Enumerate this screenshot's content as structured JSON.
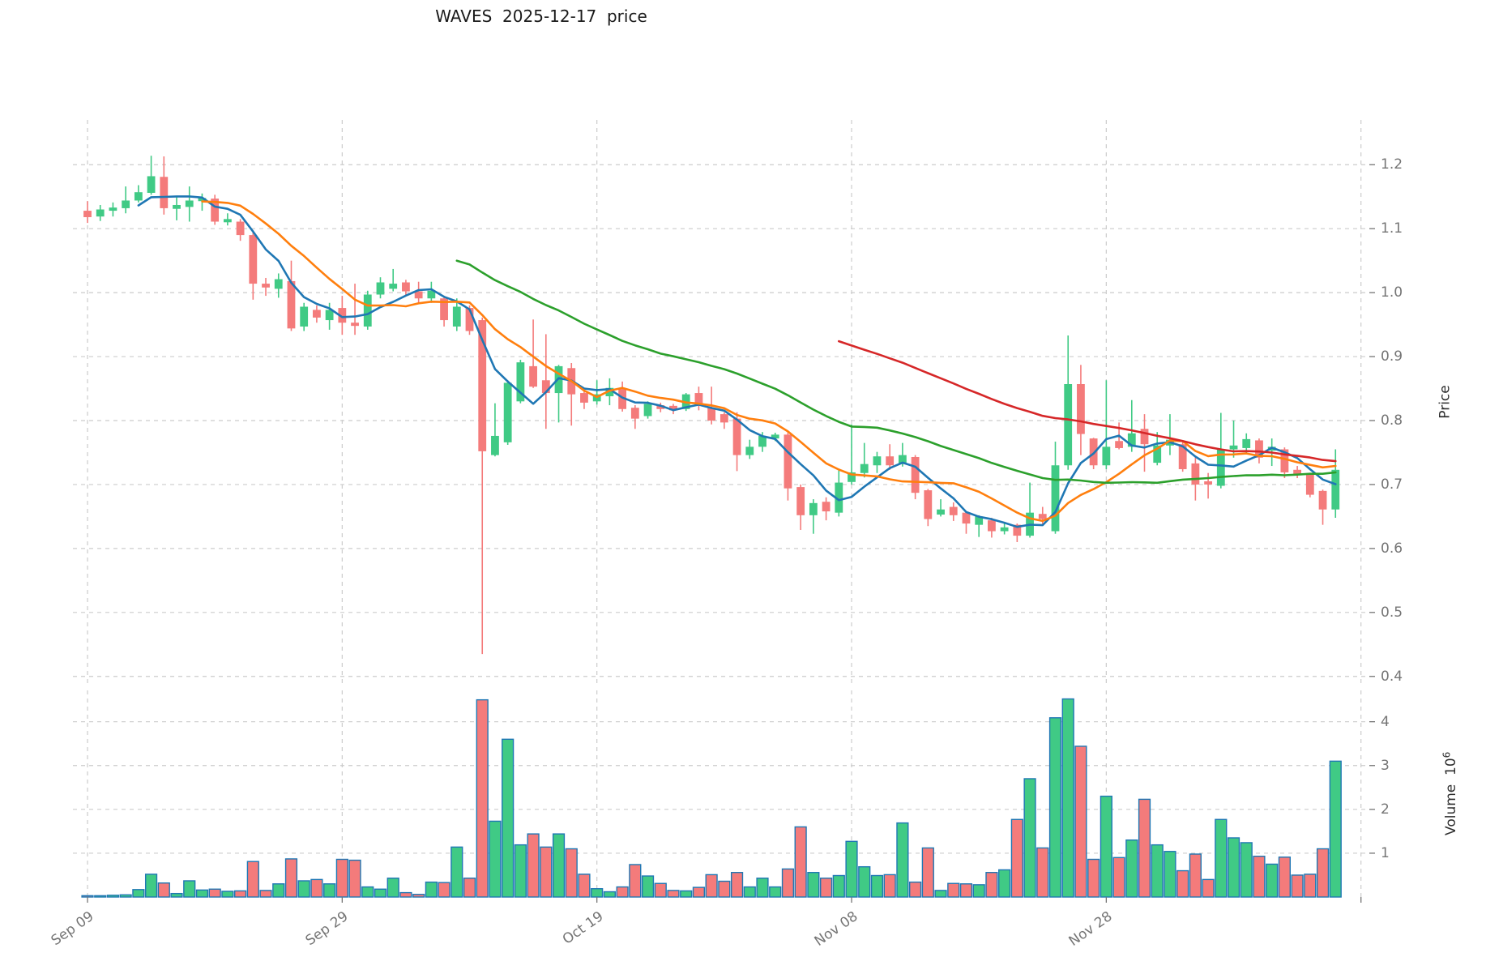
{
  "title": "WAVES  2025-12-17  price",
  "price_axis": {
    "label": "Price",
    "ticks": [
      {
        "v": 1.2,
        "label": "1.2"
      },
      {
        "v": 1.1,
        "label": "1.1"
      },
      {
        "v": 1.0,
        "label": "1.0"
      },
      {
        "v": 0.9,
        "label": "0.9"
      },
      {
        "v": 0.8,
        "label": "0.8"
      },
      {
        "v": 0.7,
        "label": "0.7"
      },
      {
        "v": 0.6,
        "label": "0.6"
      },
      {
        "v": 0.5,
        "label": "0.5"
      },
      {
        "v": 0.4,
        "label": "0.4"
      }
    ]
  },
  "volume_axis": {
    "label_base": "Volume  10",
    "label_exp": "6",
    "ticks": [
      {
        "v": 4,
        "label": "4"
      },
      {
        "v": 3,
        "label": "3"
      },
      {
        "v": 2,
        "label": "2"
      },
      {
        "v": 1,
        "label": "1"
      }
    ]
  },
  "x_axis": {
    "ticks": [
      {
        "day": 0,
        "label": "Sep 09"
      },
      {
        "day": 20,
        "label": "Sep 29"
      },
      {
        "day": 40,
        "label": "Oct 19"
      },
      {
        "day": 60,
        "label": "Nov 08"
      },
      {
        "day": 80,
        "label": "Nov 28"
      },
      {
        "day": 100,
        "label": ""
      }
    ]
  },
  "colors": {
    "up": "#40ca85",
    "down": "#f47b7b",
    "volume_edge": "#1f77b4",
    "grid": "#cccccc",
    "tick_text": "#757575",
    "axis_label_text": "#2e2e2e",
    "title_text": "#1a1a1a"
  },
  "chart_data": {
    "type": "candlestick_volume",
    "title": "WAVES  2025-12-17  price",
    "x_start_label": "Sep 09",
    "x_tick_step_days": 20,
    "price_ylim": [
      0.387,
      1.27
    ],
    "volume_ylim": [
      0,
      4.715
    ],
    "grid": "dashed",
    "ohlcv_format": [
      "open",
      "high",
      "low",
      "close",
      "volume_millions"
    ],
    "candles": [
      [
        1.128,
        1.143,
        1.109,
        1.118,
        0.03
      ],
      [
        1.119,
        1.137,
        1.112,
        1.13,
        0.03
      ],
      [
        1.128,
        1.141,
        1.119,
        1.133,
        0.04
      ],
      [
        1.132,
        1.166,
        1.124,
        1.144,
        0.05
      ],
      [
        1.144,
        1.168,
        1.141,
        1.157,
        0.17
      ],
      [
        1.156,
        1.214,
        1.153,
        1.182,
        0.52
      ],
      [
        1.181,
        1.213,
        1.122,
        1.132,
        0.32
      ],
      [
        1.131,
        1.149,
        1.113,
        1.137,
        0.08
      ],
      [
        1.134,
        1.166,
        1.111,
        1.144,
        0.37
      ],
      [
        1.143,
        1.155,
        1.128,
        1.148,
        0.16
      ],
      [
        1.147,
        1.153,
        1.106,
        1.111,
        0.18
      ],
      [
        1.11,
        1.124,
        1.105,
        1.115,
        0.13
      ],
      [
        1.111,
        1.115,
        1.081,
        1.09,
        0.14
      ],
      [
        1.09,
        1.095,
        0.989,
        1.014,
        0.81
      ],
      [
        1.014,
        1.023,
        0.995,
        1.008,
        0.15
      ],
      [
        1.006,
        1.03,
        0.992,
        1.021,
        0.3
      ],
      [
        1.018,
        1.05,
        0.94,
        0.944,
        0.87
      ],
      [
        0.947,
        0.984,
        0.94,
        0.978,
        0.37
      ],
      [
        0.973,
        0.98,
        0.953,
        0.961,
        0.4
      ],
      [
        0.957,
        0.984,
        0.942,
        0.973,
        0.3
      ],
      [
        0.976,
        0.995,
        0.934,
        0.953,
        0.86
      ],
      [
        0.953,
        1.014,
        0.934,
        0.948,
        0.84
      ],
      [
        0.947,
        1.003,
        0.942,
        0.997,
        0.23
      ],
      [
        0.997,
        1.024,
        0.991,
        1.016,
        0.18
      ],
      [
        1.006,
        1.037,
        1.002,
        1.014,
        0.43
      ],
      [
        1.016,
        1.02,
        0.995,
        1.002,
        0.1
      ],
      [
        1.002,
        1.017,
        0.984,
        0.991,
        0.06
      ],
      [
        0.991,
        1.017,
        0.984,
        1.003,
        0.34
      ],
      [
        0.991,
        0.995,
        0.947,
        0.957,
        0.33
      ],
      [
        0.947,
        0.991,
        0.94,
        0.978,
        1.14
      ],
      [
        0.976,
        0.98,
        0.934,
        0.94,
        0.43
      ],
      [
        0.957,
        0.961,
        0.435,
        0.752,
        4.5
      ],
      [
        0.746,
        0.827,
        0.744,
        0.776,
        1.73
      ],
      [
        0.766,
        0.863,
        0.762,
        0.859,
        3.6
      ],
      [
        0.83,
        0.895,
        0.827,
        0.891,
        1.19
      ],
      [
        0.885,
        0.958,
        0.851,
        0.853,
        1.44
      ],
      [
        0.863,
        0.935,
        0.787,
        0.843,
        1.14
      ],
      [
        0.843,
        0.887,
        0.797,
        0.885,
        1.44
      ],
      [
        0.882,
        0.89,
        0.792,
        0.841,
        1.1
      ],
      [
        0.843,
        0.847,
        0.818,
        0.828,
        0.52
      ],
      [
        0.83,
        0.863,
        0.825,
        0.841,
        0.19
      ],
      [
        0.838,
        0.866,
        0.824,
        0.851,
        0.12
      ],
      [
        0.849,
        0.861,
        0.814,
        0.818,
        0.23
      ],
      [
        0.82,
        0.824,
        0.787,
        0.803,
        0.74
      ],
      [
        0.807,
        0.83,
        0.803,
        0.826,
        0.48
      ],
      [
        0.824,
        0.828,
        0.813,
        0.818,
        0.31
      ],
      [
        0.823,
        0.826,
        0.81,
        0.816,
        0.15
      ],
      [
        0.818,
        0.843,
        0.815,
        0.841,
        0.14
      ],
      [
        0.843,
        0.853,
        0.816,
        0.823,
        0.22
      ],
      [
        0.82,
        0.853,
        0.794,
        0.8,
        0.51
      ],
      [
        0.81,
        0.813,
        0.787,
        0.797,
        0.36
      ],
      [
        0.803,
        0.813,
        0.721,
        0.746,
        0.56
      ],
      [
        0.746,
        0.77,
        0.74,
        0.759,
        0.23
      ],
      [
        0.759,
        0.782,
        0.751,
        0.776,
        0.43
      ],
      [
        0.772,
        0.781,
        0.768,
        0.778,
        0.23
      ],
      [
        0.778,
        0.782,
        0.675,
        0.694,
        0.64
      ],
      [
        0.696,
        0.7,
        0.629,
        0.652,
        1.6
      ],
      [
        0.652,
        0.677,
        0.623,
        0.671,
        0.56
      ],
      [
        0.673,
        0.68,
        0.644,
        0.658,
        0.43
      ],
      [
        0.656,
        0.723,
        0.65,
        0.703,
        0.49
      ],
      [
        0.704,
        0.794,
        0.7,
        0.719,
        1.27
      ],
      [
        0.718,
        0.765,
        0.711,
        0.732,
        0.69
      ],
      [
        0.73,
        0.751,
        0.718,
        0.744,
        0.49
      ],
      [
        0.744,
        0.763,
        0.723,
        0.73,
        0.51
      ],
      [
        0.732,
        0.765,
        0.728,
        0.746,
        1.69
      ],
      [
        0.743,
        0.746,
        0.677,
        0.687,
        0.34
      ],
      [
        0.691,
        0.693,
        0.635,
        0.646,
        1.12
      ],
      [
        0.653,
        0.677,
        0.65,
        0.661,
        0.15
      ],
      [
        0.665,
        0.672,
        0.643,
        0.652,
        0.31
      ],
      [
        0.656,
        0.658,
        0.623,
        0.639,
        0.3
      ],
      [
        0.637,
        0.652,
        0.618,
        0.65,
        0.28
      ],
      [
        0.644,
        0.648,
        0.617,
        0.627,
        0.56
      ],
      [
        0.627,
        0.64,
        0.622,
        0.633,
        0.62
      ],
      [
        0.637,
        0.639,
        0.61,
        0.62,
        1.77
      ],
      [
        0.62,
        0.703,
        0.617,
        0.656,
        2.7
      ],
      [
        0.654,
        0.665,
        0.637,
        0.646,
        1.12
      ],
      [
        0.627,
        0.767,
        0.623,
        0.73,
        4.09
      ],
      [
        0.73,
        0.933,
        0.723,
        0.857,
        4.52
      ],
      [
        0.857,
        0.887,
        0.746,
        0.779,
        3.44
      ],
      [
        0.772,
        0.773,
        0.724,
        0.73,
        0.86
      ],
      [
        0.73,
        0.863,
        0.724,
        0.759,
        2.3
      ],
      [
        0.768,
        0.797,
        0.755,
        0.757,
        0.9
      ],
      [
        0.759,
        0.832,
        0.751,
        0.78,
        1.3
      ],
      [
        0.787,
        0.81,
        0.72,
        0.763,
        2.23
      ],
      [
        0.734,
        0.782,
        0.73,
        0.761,
        1.19
      ],
      [
        0.761,
        0.81,
        0.746,
        0.77,
        1.04
      ],
      [
        0.763,
        0.767,
        0.72,
        0.724,
        0.6
      ],
      [
        0.733,
        0.742,
        0.675,
        0.7,
        0.98
      ],
      [
        0.705,
        0.718,
        0.678,
        0.7,
        0.4
      ],
      [
        0.698,
        0.812,
        0.694,
        0.755,
        1.77
      ],
      [
        0.755,
        0.8,
        0.742,
        0.761,
        1.35
      ],
      [
        0.757,
        0.78,
        0.747,
        0.771,
        1.24
      ],
      [
        0.769,
        0.772,
        0.733,
        0.742,
        0.93
      ],
      [
        0.753,
        0.772,
        0.729,
        0.759,
        0.75
      ],
      [
        0.755,
        0.758,
        0.71,
        0.719,
        0.91
      ],
      [
        0.723,
        0.729,
        0.71,
        0.716,
        0.5
      ],
      [
        0.716,
        0.718,
        0.68,
        0.684,
        0.52
      ],
      [
        0.69,
        0.692,
        0.637,
        0.661,
        1.1
      ],
      [
        0.661,
        0.755,
        0.648,
        0.723,
        3.1
      ]
    ],
    "moving_averages": [
      {
        "name": "SMA5",
        "window": 5,
        "color": "#1f77b4"
      },
      {
        "name": "SMA10",
        "window": 10,
        "color": "#ff7f0e"
      },
      {
        "name": "SMA30",
        "window": 30,
        "color": "#2ca02c"
      },
      {
        "name": "SMA60",
        "window": 60,
        "color": "#d62728"
      }
    ]
  }
}
